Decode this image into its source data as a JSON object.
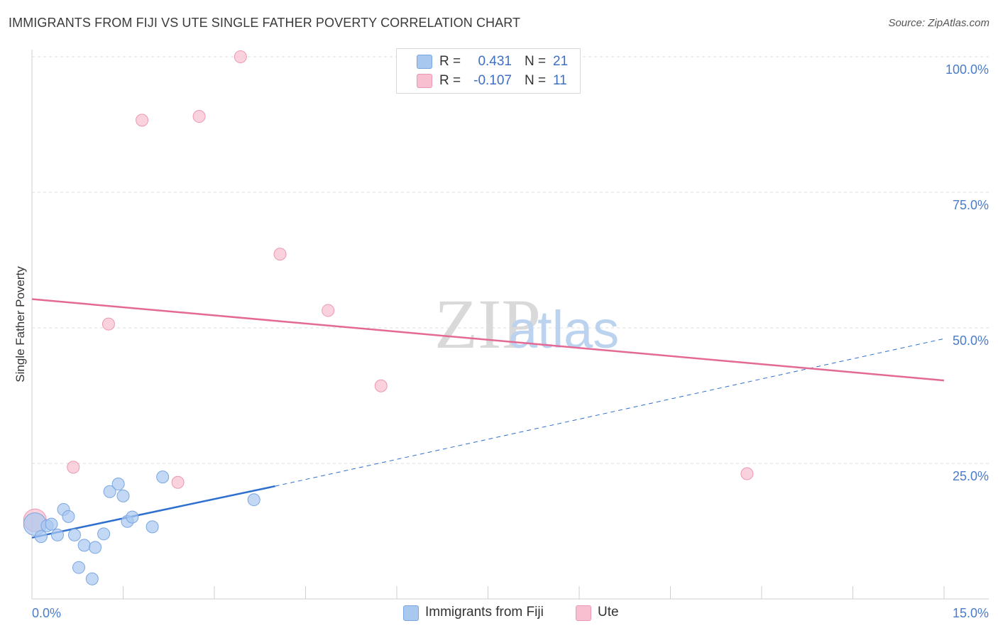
{
  "header": {
    "title": "IMMIGRANTS FROM FIJI VS UTE SINGLE FATHER POVERTY CORRELATION CHART",
    "source": "Source: ZipAtlas.com"
  },
  "watermark": {
    "part1": "ZIP",
    "part2": "atlas"
  },
  "legend": {
    "rows": [
      {
        "r_label": "R =",
        "r_value": "0.431",
        "n_label": "N =",
        "n_value": "21",
        "color": "#a9c8f0"
      },
      {
        "r_label": "R =",
        "r_value": "-0.107",
        "n_label": "N =",
        "n_value": "11",
        "color": "#f7bfd0"
      }
    ]
  },
  "bottom_legend": {
    "series1": "Immigrants from Fiji",
    "series2": "Ute"
  },
  "colors": {
    "fiji_fill": "#a9c8f0",
    "fiji_stroke": "#7aa6e0",
    "fiji_line": "#2f6fcf",
    "ute_fill": "#f7bfd0",
    "ute_stroke": "#ec98b2",
    "ute_line": "#e46a94",
    "tick_text": "#4a7cc9"
  },
  "chart_data": {
    "type": "scatter",
    "title": "IMMIGRANTS FROM FIJI VS UTE SINGLE FATHER POVERTY CORRELATION CHART",
    "xlabel": "",
    "ylabel": "Single Father Poverty",
    "xlim": [
      0,
      15
    ],
    "ylim": [
      0,
      100
    ],
    "x_tick_labels": [
      "0.0%",
      "15.0%"
    ],
    "y_ticks": [
      25,
      50,
      75,
      100
    ],
    "y_tick_labels": [
      "25.0%",
      "50.0%",
      "75.0%",
      "100.0%"
    ],
    "grid": true,
    "series": [
      {
        "name": "Immigrants from Fiji",
        "r": 0.431,
        "n": 21,
        "points": [
          {
            "x": 0.05,
            "y": 13.8,
            "big": true
          },
          {
            "x": 0.15,
            "y": 11.5
          },
          {
            "x": 0.25,
            "y": 13.5
          },
          {
            "x": 0.32,
            "y": 13.8
          },
          {
            "x": 0.42,
            "y": 11.8
          },
          {
            "x": 0.52,
            "y": 16.5
          },
          {
            "x": 0.6,
            "y": 15.2
          },
          {
            "x": 0.7,
            "y": 11.8
          },
          {
            "x": 0.77,
            "y": 5.8
          },
          {
            "x": 0.86,
            "y": 9.9
          },
          {
            "x": 0.99,
            "y": 3.7
          },
          {
            "x": 1.04,
            "y": 9.5
          },
          {
            "x": 1.18,
            "y": 12.0
          },
          {
            "x": 1.28,
            "y": 19.8
          },
          {
            "x": 1.42,
            "y": 21.2
          },
          {
            "x": 1.5,
            "y": 19.0
          },
          {
            "x": 1.57,
            "y": 14.3
          },
          {
            "x": 1.65,
            "y": 15.1
          },
          {
            "x": 1.98,
            "y": 13.3
          },
          {
            "x": 2.15,
            "y": 22.5
          },
          {
            "x": 3.65,
            "y": 18.3
          }
        ],
        "trend": {
          "x0": 0.0,
          "y0": 11.3,
          "x1": 4.0,
          "y1": 20.8,
          "dash_x1": 15.0,
          "dash_y1": 48.0
        }
      },
      {
        "name": "Ute",
        "r": -0.107,
        "n": 11,
        "points": [
          {
            "x": 0.05,
            "y": 14.5,
            "big": true
          },
          {
            "x": 0.68,
            "y": 24.3
          },
          {
            "x": 1.26,
            "y": 50.7
          },
          {
            "x": 1.81,
            "y": 88.3
          },
          {
            "x": 2.4,
            "y": 21.5
          },
          {
            "x": 2.75,
            "y": 89.0
          },
          {
            "x": 3.43,
            "y": 100.0
          },
          {
            "x": 4.08,
            "y": 63.6
          },
          {
            "x": 4.87,
            "y": 53.2
          },
          {
            "x": 5.74,
            "y": 39.3
          },
          {
            "x": 11.76,
            "y": 23.1
          }
        ],
        "trend": {
          "x0": 0.0,
          "y0": 55.3,
          "x1": 15.0,
          "y1": 40.3
        }
      }
    ]
  }
}
